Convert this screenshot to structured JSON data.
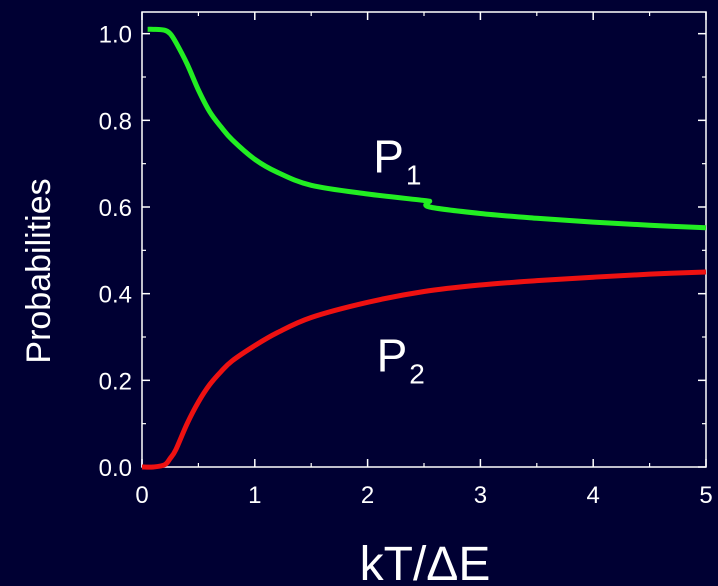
{
  "colors": {
    "background": "#000033",
    "axis": "#ffffff",
    "p1": "#22ee22",
    "p2": "#ee1111"
  },
  "chart_data": {
    "type": "line",
    "title": "",
    "xlabel": "kT/ΔE",
    "ylabel": "Probabilities",
    "xlim": [
      0,
      5
    ],
    "ylim": [
      0,
      1.05
    ],
    "x_ticks": [
      0,
      1,
      2,
      3,
      4,
      5
    ],
    "x_tick_labels": [
      "0",
      "1",
      "2",
      "3",
      "4",
      "5"
    ],
    "y_ticks": [
      0.0,
      0.2,
      0.4,
      0.6,
      0.8,
      1.0
    ],
    "y_tick_labels": [
      "0.0",
      "0.2",
      "0.4",
      "0.6",
      "0.8",
      "1.0"
    ],
    "grid": false,
    "series": [
      {
        "name": "P1",
        "label_main": "P",
        "label_sub": "1",
        "color": "#22ee22",
        "x": [
          0.05,
          0.1,
          0.2,
          0.25,
          0.3,
          0.4,
          0.5,
          0.6,
          0.7,
          0.8,
          1.0,
          1.2,
          1.5,
          2.0,
          2.5,
          2.54,
          2.55,
          3.0,
          3.5,
          4.0,
          4.5,
          5.0
        ],
        "y": [
          1.01,
          1.01,
          1.008,
          1.0,
          0.98,
          0.93,
          0.87,
          0.82,
          0.785,
          0.755,
          0.71,
          0.68,
          0.65,
          0.63,
          0.615,
          0.612,
          0.6,
          0.585,
          0.574,
          0.565,
          0.558,
          0.552
        ]
      },
      {
        "name": "P2",
        "label_main": "P",
        "label_sub": "2",
        "color": "#ee1111",
        "x": [
          0.0,
          0.1,
          0.2,
          0.25,
          0.3,
          0.4,
          0.5,
          0.6,
          0.7,
          0.8,
          1.0,
          1.2,
          1.5,
          2.0,
          2.5,
          3.0,
          3.5,
          4.0,
          4.5,
          5.0
        ],
        "y": [
          0.0,
          0.0,
          0.005,
          0.02,
          0.04,
          0.1,
          0.15,
          0.19,
          0.22,
          0.245,
          0.28,
          0.31,
          0.345,
          0.38,
          0.405,
          0.42,
          0.43,
          0.438,
          0.445,
          0.45
        ]
      }
    ],
    "annotations": [
      {
        "series": "P1",
        "x": 2.05,
        "y": 0.68
      },
      {
        "series": "P2",
        "x": 2.08,
        "y": 0.22
      }
    ]
  }
}
